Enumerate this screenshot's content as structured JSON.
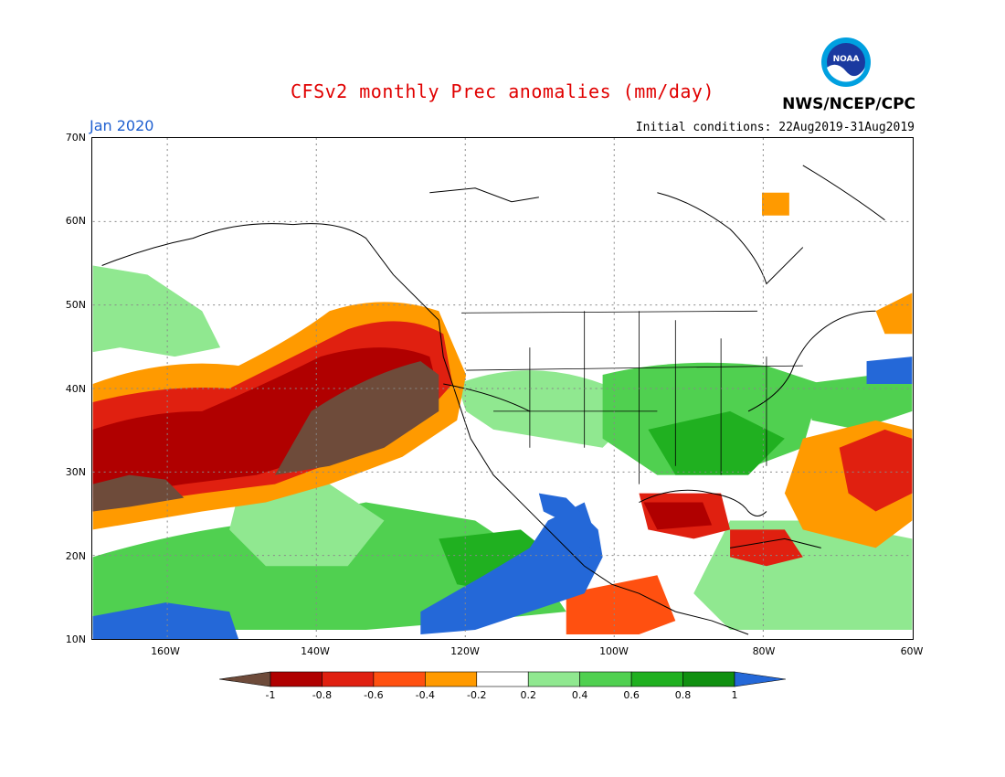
{
  "header": {
    "title": "CFSv2 monthly Prec anomalies (mm/day)",
    "month": "Jan 2020",
    "initial_conditions": "Initial conditions: 22Aug2019-31Aug2019",
    "agency": "NWS/NCEP/CPC",
    "logo_text": "NOAA"
  },
  "map": {
    "lat_labels": [
      "70N",
      "60N",
      "50N",
      "40N",
      "30N",
      "20N",
      "10N"
    ],
    "lon_labels": [
      "160W",
      "140W",
      "120W",
      "100W",
      "80W",
      "60W"
    ],
    "lat_range": [
      10,
      70
    ],
    "lon_range": [
      -170,
      -60
    ]
  },
  "colorbar": {
    "labels": [
      "-1",
      "-0.8",
      "-0.6",
      "-0.4",
      "-0.2",
      "0.2",
      "0.4",
      "0.6",
      "0.8",
      "1"
    ],
    "colors": [
      "#6e4b3a",
      "#b00000",
      "#e02010",
      "#ff5010",
      "#ff9a00",
      "#ffffff",
      "#90e890",
      "#50d050",
      "#20b020",
      "#109010",
      "#2468d8"
    ]
  }
}
